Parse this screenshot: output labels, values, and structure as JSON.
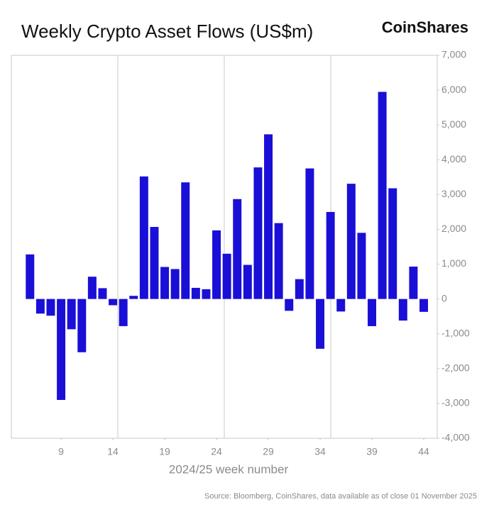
{
  "chart_data": {
    "type": "bar",
    "title": "Weekly Crypto Asset Flows (US$m)",
    "brand": "CoinShares",
    "x_label": "2024/25 week number",
    "source": "Source: Bloomberg, CoinShares, data available as of close 01 November 2025",
    "x": [
      6,
      7,
      8,
      9,
      10,
      11,
      12,
      13,
      14,
      15,
      16,
      17,
      18,
      19,
      20,
      21,
      22,
      23,
      24,
      25,
      26,
      27,
      28,
      29,
      30,
      31,
      32,
      33,
      34,
      35,
      36,
      37,
      38,
      39,
      40,
      41,
      42,
      43,
      44
    ],
    "values": [
      1280,
      -420,
      -480,
      -2900,
      -870,
      -1530,
      640,
      310,
      -180,
      -780,
      90,
      3520,
      2070,
      920,
      860,
      3350,
      320,
      280,
      1970,
      1300,
      2870,
      980,
      3780,
      4730,
      2180,
      -340,
      570,
      3750,
      -1430,
      2500,
      -360,
      3310,
      1900,
      -780,
      5950,
      3180,
      -620,
      930,
      -370
    ],
    "color": "#1a0fd6",
    "xlim": [
      4.2,
      45.3
    ],
    "xticks": [
      9,
      14,
      19,
      24,
      29,
      34,
      39,
      44
    ],
    "ylim": [
      -4000,
      7000
    ],
    "yticks": [
      {
        "value": -4000,
        "label": "-4,000"
      },
      {
        "value": -3000,
        "label": "-3,000"
      },
      {
        "value": -2000,
        "label": "-2,000"
      },
      {
        "value": -1000,
        "label": "-1,000"
      },
      0,
      {
        "value": 1000,
        "label": "1,000"
      },
      {
        "value": 2000,
        "label": "2,000"
      },
      {
        "value": 3000,
        "label": "3,000"
      },
      {
        "value": 4000,
        "label": "4,000"
      },
      {
        "value": 5000,
        "label": "5,000"
      },
      {
        "value": 6000,
        "label": "6,000"
      },
      {
        "value": 7000,
        "label": "7,000"
      }
    ]
  }
}
